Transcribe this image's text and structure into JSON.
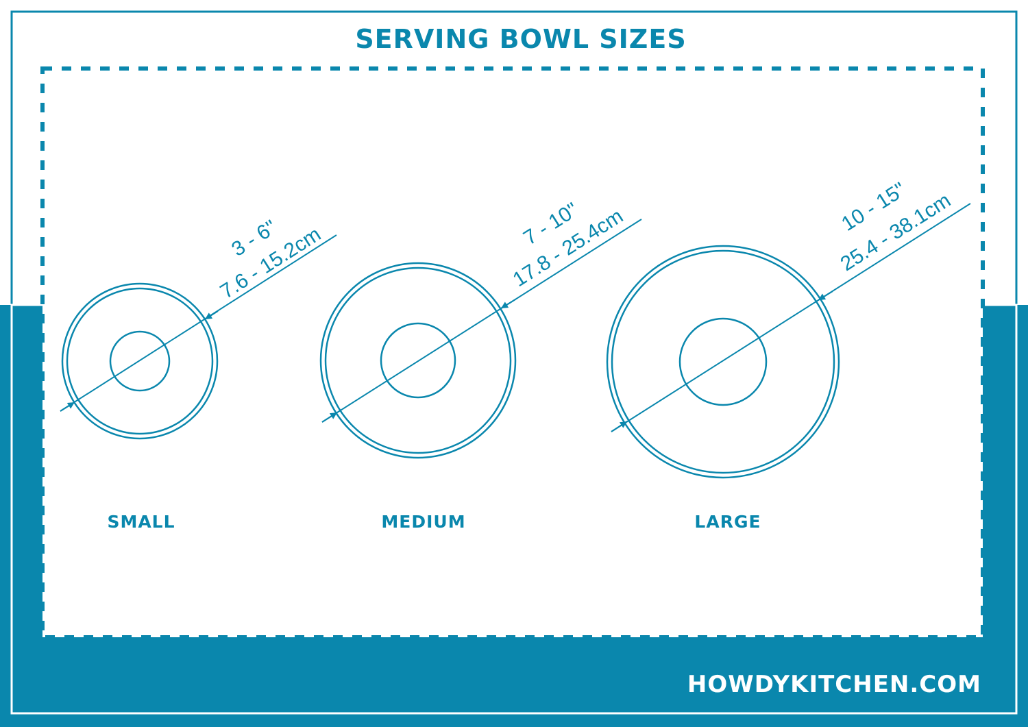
{
  "title": "SERVING BOWL SIZES",
  "footer": "HOWDYKITCHEN.COM",
  "colors": {
    "accent": "#0a87ad",
    "background": "#ffffff"
  },
  "bowls": [
    {
      "label": "SMALL",
      "inches": "3 - 6\"",
      "cm": "7.6 - 15.2cm"
    },
    {
      "label": "MEDIUM",
      "inches": "7 - 10\"",
      "cm": "17.8 - 25.4cm"
    },
    {
      "label": "LARGE",
      "inches": "10 - 15\"",
      "cm": "25.4 - 38.1cm"
    }
  ]
}
